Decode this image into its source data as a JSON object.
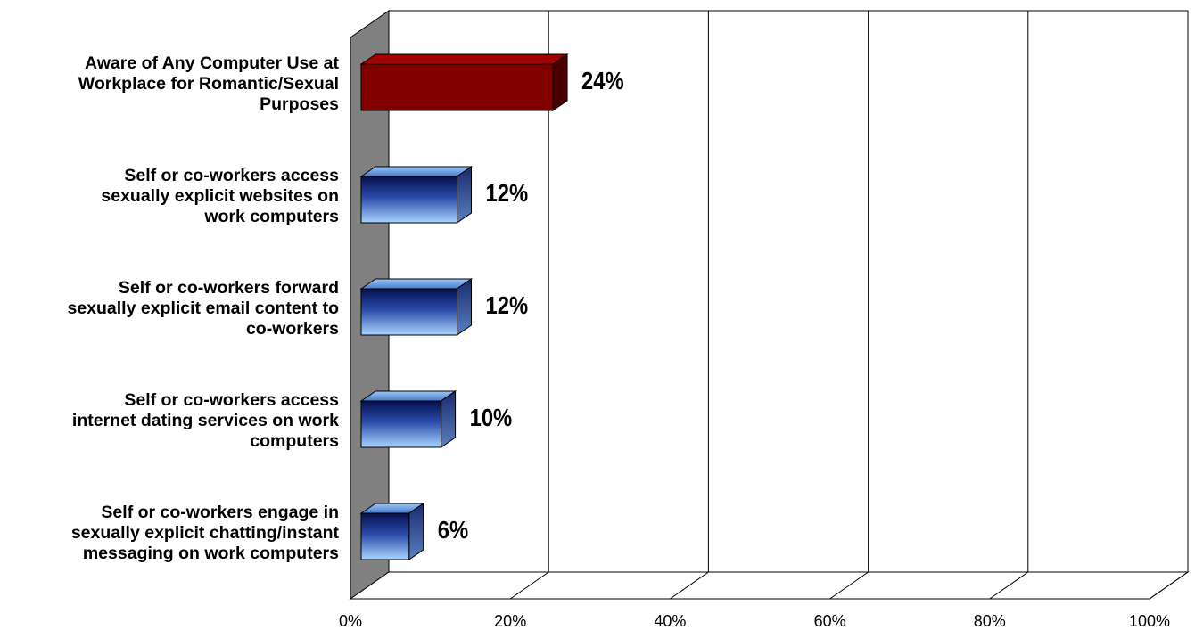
{
  "chart_data": {
    "type": "bar",
    "orientation": "horizontal",
    "style": "3d",
    "categories": [
      [
        "Aware of Any Computer Use at",
        "Workplace for Romantic/Sexual",
        "Purposes"
      ],
      [
        "Self or co-workers access",
        "sexually explicit websites on",
        "work computers"
      ],
      [
        "Self or co-workers forward",
        "sexually explicit email content to",
        "co-workers"
      ],
      [
        "Self or co-workers access",
        "internet dating services on work",
        "computers"
      ],
      [
        "Self or co-workers engage in",
        "sexually explicit chatting/instant",
        "messaging on work computers"
      ]
    ],
    "values": [
      24,
      12,
      12,
      10,
      6
    ],
    "value_labels": [
      "24%",
      "12%",
      "12%",
      "10%",
      "6%"
    ],
    "bar_colors": [
      "#800000",
      "#0a1a6e",
      "#0a1a6e",
      "#0a1a6e",
      "#0a1a6e"
    ],
    "xlim": [
      0,
      100
    ],
    "xticks": [
      0,
      20,
      40,
      60,
      80,
      100
    ],
    "xtick_labels": [
      "0%",
      "20%",
      "40%",
      "60%",
      "80%",
      "100%"
    ],
    "grid": true,
    "legend": "none",
    "title": "",
    "xlabel": "",
    "ylabel": ""
  }
}
